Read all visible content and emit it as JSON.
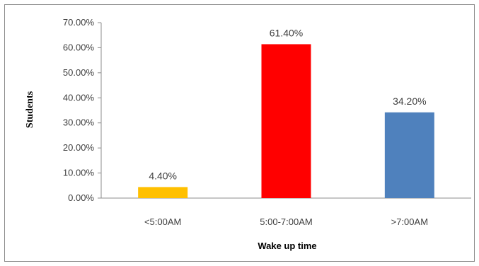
{
  "chart_data": {
    "type": "bar",
    "title": "",
    "xlabel": "Wake up time",
    "ylabel": "Students",
    "categories": [
      "<5:00AM",
      "5:00-7:00AM",
      ">7:00AM"
    ],
    "values": [
      4.4,
      61.4,
      34.2
    ],
    "value_labels": [
      "4.40%",
      "61.40%",
      "34.20%"
    ],
    "bar_colors": [
      "#FFC000",
      "#FF0000",
      "#4F81BD"
    ],
    "ylim": [
      0,
      70
    ],
    "yticks": [
      0,
      10,
      20,
      30,
      40,
      50,
      60,
      70
    ],
    "ytick_labels": [
      "0.00%",
      "10.00%",
      "20.00%",
      "30.00%",
      "40.00%",
      "50.00%",
      "60.00%",
      "70.00%"
    ],
    "grid": false,
    "legend": "none"
  }
}
